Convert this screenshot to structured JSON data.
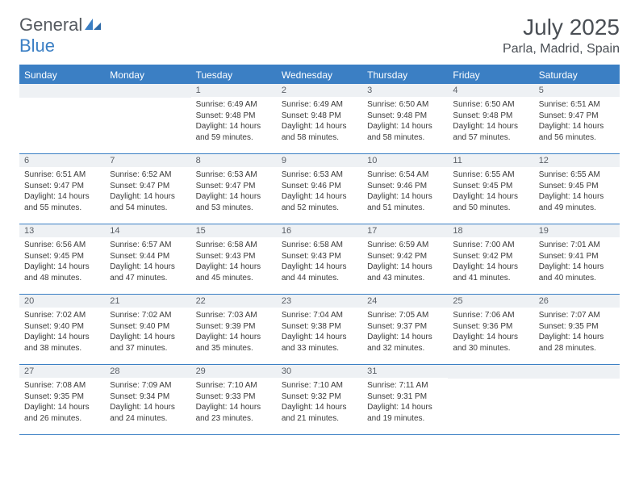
{
  "brand": {
    "name_part1": "General",
    "name_part2": "Blue"
  },
  "title": "July 2025",
  "location": "Parla, Madrid, Spain",
  "colors": {
    "brand_blue": "#3b7fc4",
    "header_gray": "#4a4f55",
    "cell_header_bg": "#eef1f4",
    "text": "#3a3a3a",
    "white": "#ffffff"
  },
  "weekdays": [
    "Sunday",
    "Monday",
    "Tuesday",
    "Wednesday",
    "Thursday",
    "Friday",
    "Saturday"
  ],
  "weeks": [
    [
      null,
      null,
      {
        "n": "1",
        "sr": "6:49 AM",
        "ss": "9:48 PM",
        "dl": "14 hours and 59 minutes."
      },
      {
        "n": "2",
        "sr": "6:49 AM",
        "ss": "9:48 PM",
        "dl": "14 hours and 58 minutes."
      },
      {
        "n": "3",
        "sr": "6:50 AM",
        "ss": "9:48 PM",
        "dl": "14 hours and 58 minutes."
      },
      {
        "n": "4",
        "sr": "6:50 AM",
        "ss": "9:48 PM",
        "dl": "14 hours and 57 minutes."
      },
      {
        "n": "5",
        "sr": "6:51 AM",
        "ss": "9:47 PM",
        "dl": "14 hours and 56 minutes."
      }
    ],
    [
      {
        "n": "6",
        "sr": "6:51 AM",
        "ss": "9:47 PM",
        "dl": "14 hours and 55 minutes."
      },
      {
        "n": "7",
        "sr": "6:52 AM",
        "ss": "9:47 PM",
        "dl": "14 hours and 54 minutes."
      },
      {
        "n": "8",
        "sr": "6:53 AM",
        "ss": "9:47 PM",
        "dl": "14 hours and 53 minutes."
      },
      {
        "n": "9",
        "sr": "6:53 AM",
        "ss": "9:46 PM",
        "dl": "14 hours and 52 minutes."
      },
      {
        "n": "10",
        "sr": "6:54 AM",
        "ss": "9:46 PM",
        "dl": "14 hours and 51 minutes."
      },
      {
        "n": "11",
        "sr": "6:55 AM",
        "ss": "9:45 PM",
        "dl": "14 hours and 50 minutes."
      },
      {
        "n": "12",
        "sr": "6:55 AM",
        "ss": "9:45 PM",
        "dl": "14 hours and 49 minutes."
      }
    ],
    [
      {
        "n": "13",
        "sr": "6:56 AM",
        "ss": "9:45 PM",
        "dl": "14 hours and 48 minutes."
      },
      {
        "n": "14",
        "sr": "6:57 AM",
        "ss": "9:44 PM",
        "dl": "14 hours and 47 minutes."
      },
      {
        "n": "15",
        "sr": "6:58 AM",
        "ss": "9:43 PM",
        "dl": "14 hours and 45 minutes."
      },
      {
        "n": "16",
        "sr": "6:58 AM",
        "ss": "9:43 PM",
        "dl": "14 hours and 44 minutes."
      },
      {
        "n": "17",
        "sr": "6:59 AM",
        "ss": "9:42 PM",
        "dl": "14 hours and 43 minutes."
      },
      {
        "n": "18",
        "sr": "7:00 AM",
        "ss": "9:42 PM",
        "dl": "14 hours and 41 minutes."
      },
      {
        "n": "19",
        "sr": "7:01 AM",
        "ss": "9:41 PM",
        "dl": "14 hours and 40 minutes."
      }
    ],
    [
      {
        "n": "20",
        "sr": "7:02 AM",
        "ss": "9:40 PM",
        "dl": "14 hours and 38 minutes."
      },
      {
        "n": "21",
        "sr": "7:02 AM",
        "ss": "9:40 PM",
        "dl": "14 hours and 37 minutes."
      },
      {
        "n": "22",
        "sr": "7:03 AM",
        "ss": "9:39 PM",
        "dl": "14 hours and 35 minutes."
      },
      {
        "n": "23",
        "sr": "7:04 AM",
        "ss": "9:38 PM",
        "dl": "14 hours and 33 minutes."
      },
      {
        "n": "24",
        "sr": "7:05 AM",
        "ss": "9:37 PM",
        "dl": "14 hours and 32 minutes."
      },
      {
        "n": "25",
        "sr": "7:06 AM",
        "ss": "9:36 PM",
        "dl": "14 hours and 30 minutes."
      },
      {
        "n": "26",
        "sr": "7:07 AM",
        "ss": "9:35 PM",
        "dl": "14 hours and 28 minutes."
      }
    ],
    [
      {
        "n": "27",
        "sr": "7:08 AM",
        "ss": "9:35 PM",
        "dl": "14 hours and 26 minutes."
      },
      {
        "n": "28",
        "sr": "7:09 AM",
        "ss": "9:34 PM",
        "dl": "14 hours and 24 minutes."
      },
      {
        "n": "29",
        "sr": "7:10 AM",
        "ss": "9:33 PM",
        "dl": "14 hours and 23 minutes."
      },
      {
        "n": "30",
        "sr": "7:10 AM",
        "ss": "9:32 PM",
        "dl": "14 hours and 21 minutes."
      },
      {
        "n": "31",
        "sr": "7:11 AM",
        "ss": "9:31 PM",
        "dl": "14 hours and 19 minutes."
      },
      null,
      null
    ]
  ],
  "labels": {
    "sunrise": "Sunrise:",
    "sunset": "Sunset:",
    "daylight": "Daylight:"
  }
}
